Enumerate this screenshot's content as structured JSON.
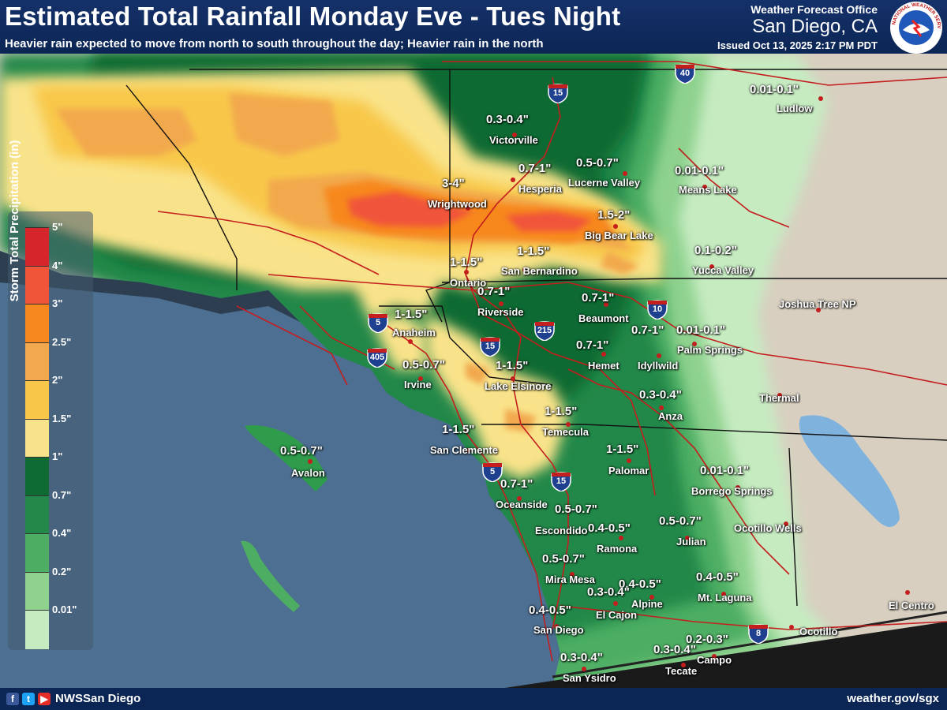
{
  "header": {
    "title": "Estimated Total Rainfall Monday Eve - Tues Night",
    "subtitle": "Heavier rain expected to move from north to south throughout the day; Heavier rain in the north",
    "office_label": "Weather Forecast Office",
    "office_city": "San Diego, CA",
    "issued": "Issued Oct 13, 2025 2:17 PM PDT",
    "logo_text": "NATIONAL WEATHER SERVICE"
  },
  "legend": {
    "title": "Storm Total Precipitation (in)",
    "items": [
      {
        "label": "5\"",
        "color": "#d7262b"
      },
      {
        "label": "4\"",
        "color": "#f0553a"
      },
      {
        "label": "3\"",
        "color": "#f7881f"
      },
      {
        "label": "2.5\"",
        "color": "#f2a94e"
      },
      {
        "label": "2\"",
        "color": "#f8c74a"
      },
      {
        "label": "1.5\"",
        "color": "#f9e38a"
      },
      {
        "label": "1\"",
        "color": "#0e6b33"
      },
      {
        "label": "0.7\"",
        "color": "#23884a"
      },
      {
        "label": "0.4\"",
        "color": "#4dae63"
      },
      {
        "label": "0.2\"",
        "color": "#8ed28e"
      },
      {
        "label": "0.01\"",
        "color": "#c6ebc1"
      }
    ]
  },
  "map": {
    "ocean_color": "#4d6f92",
    "desert_color": "#d8cfc0",
    "highways": [
      "40",
      "15",
      "5",
      "405",
      "15",
      "215",
      "10",
      "5",
      "15",
      "8"
    ],
    "amounts": [
      "3-4\"",
      "0.7-1\"",
      "0.5-0.7\"",
      "1.5-2\"",
      "0.3-0.4\"",
      "0.01-0.1\"",
      "0.01-0.1\"",
      "0.1-0.2\"",
      "1-1.5\"",
      "1-1.5\"",
      "0.7-1\"",
      "0.7-1\"",
      "1-1.5\"",
      "0.7-1\"",
      "0.5-0.7\"",
      "0.7-1\"",
      "0.01-0.1\"",
      "1-1.5\"",
      "0.3-0.4\"",
      "1-1.5\"",
      "1-1.5\"",
      "0.5-0.7\"",
      "1-1.5\"",
      "0.01-0.1\"",
      "0.7-1\"",
      "0.5-0.7\"",
      "0.4-0.5\"",
      "0.5-0.7\"",
      "0.5-0.7\"",
      "0.4-0.5\"",
      "0.4-0.5\"",
      "0.3-0.4\"",
      "0.4-0.5\"",
      "0.2-0.3\"",
      "0.3-0.4\"",
      "0.3-0.4\""
    ],
    "places": [
      "Victorville",
      "Hesperia",
      "Lucerne Valley",
      "Ludlow",
      "Means Lake",
      "Wrightwood",
      "Big Bear Lake",
      "Yucca Valley",
      "Ontario",
      "San Bernardino",
      "Riverside",
      "Beaumont",
      "Joshua Tree NP",
      "Anaheim",
      "Palm Springs",
      "Hemet",
      "Idyllwild",
      "Irvine",
      "Lake Elsinore",
      "Thermal",
      "Anza",
      "Temecula",
      "San Clemente",
      "Avalon",
      "Palomar",
      "Borrego Springs",
      "Oceanside",
      "Escondido",
      "Ramona",
      "Julian",
      "Ocotillo Wells",
      "Mira Mesa",
      "Mt. Laguna",
      "Alpine",
      "El Cajon",
      "El Centro",
      "San Diego",
      "Ocotillo",
      "Campo",
      "Tecate",
      "San Ysidro"
    ]
  },
  "footer": {
    "handle": "NWSSan Diego",
    "url": "weather.gov/sgx",
    "social_icons": [
      "facebook-icon",
      "twitter-icon",
      "youtube-icon"
    ]
  }
}
